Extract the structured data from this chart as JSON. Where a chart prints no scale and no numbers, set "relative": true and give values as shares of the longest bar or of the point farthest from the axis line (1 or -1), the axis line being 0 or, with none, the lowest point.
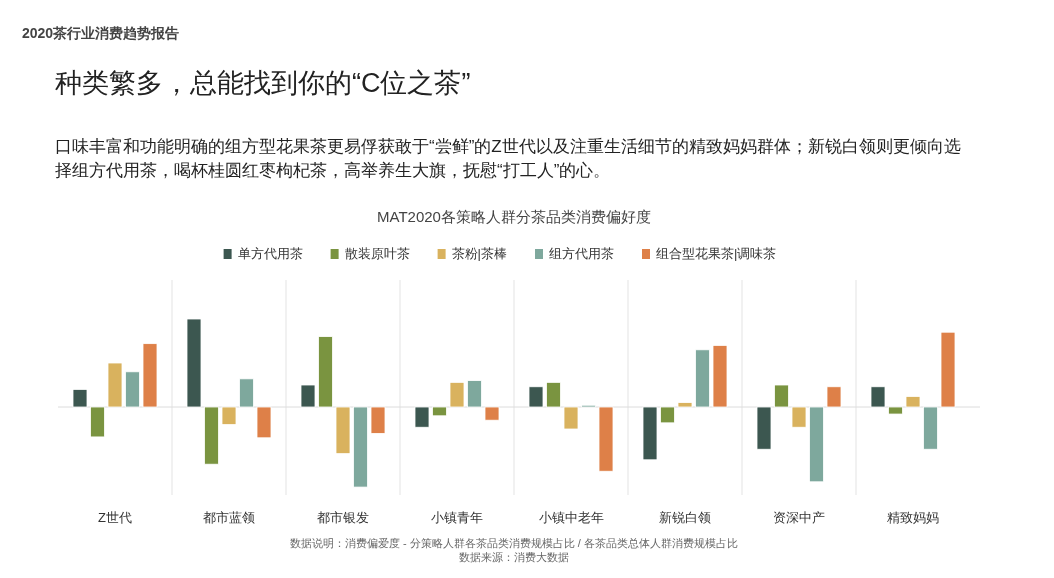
{
  "chart_data": {
    "type": "bar",
    "title": "MAT2020各策略人群分茶品类消费偏好度",
    "categories": [
      "Z世代",
      "都市蓝领",
      "都市银发",
      "小镇青年",
      "小镇中老年",
      "新锐白领",
      "资深中产",
      "精致妈妈"
    ],
    "relative": true,
    "legend": "top",
    "grid": "x",
    "series": [
      {
        "name": "单方代用茶",
        "color": "#3c5750",
        "values": [
          0.2,
          1,
          0.25,
          -0.23,
          0.23,
          -0.6,
          -0.48,
          0.23
        ]
      },
      {
        "name": "散装原叶茶",
        "color": "#7a9440",
        "values": [
          -0.34,
          -0.65,
          0.8,
          -0.1,
          0.28,
          -0.18,
          0.25,
          -0.08
        ]
      },
      {
        "name": "茶粉|茶棒",
        "color": "#d9b25e",
        "values": [
          0.5,
          -0.2,
          -0.53,
          0.28,
          -0.25,
          0.05,
          -0.23,
          0.12
        ]
      },
      {
        "name": "组方代用茶",
        "color": "#7ea89d",
        "values": [
          0.4,
          0.32,
          -0.91,
          0.3,
          0.02,
          0.65,
          -0.85,
          -0.48
        ]
      },
      {
        "name": "组合型花果茶|调味茶",
        "color": "#de8048",
        "values": [
          0.72,
          -0.35,
          -0.3,
          -0.15,
          -0.73,
          0.7,
          0.23,
          0.85
        ]
      }
    ],
    "annotations": [
      "2020茶行业消费趋势报告",
      "种类繁多，总能找到你的“C位之茶”",
      "口味丰富和功能明确的组方型花果茶更易俘获敢于“尝鲜”的Z世代以及注重生活细节的精致妈妈群体；新锐白领则更倾向选择组方代用茶，喝杯桂圆红枣枸杞茶，高举养生大旗，抚慰“打工人”的心。",
      "数据说明：消费偏爱度 - 分策略人群各茶品类消费规模占比 / 各茶品类总体人群消费规模占比",
      "数据来源：消费大数据"
    ]
  }
}
